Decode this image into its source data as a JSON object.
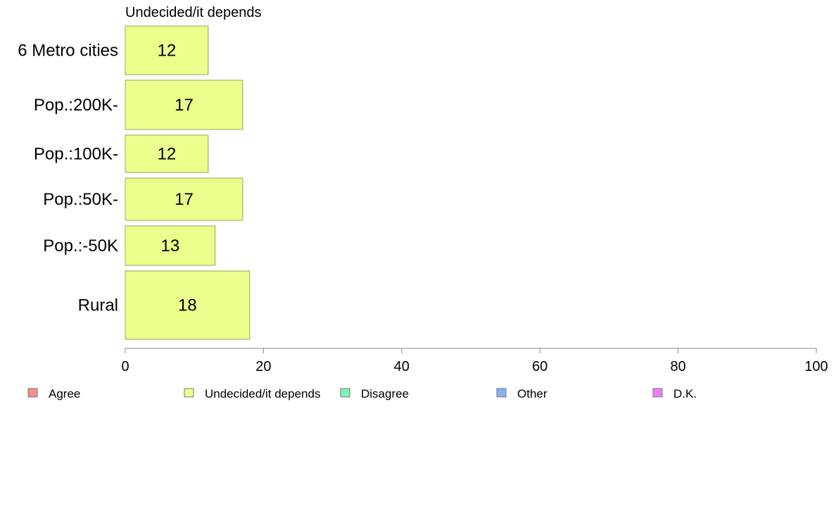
{
  "chart_data": {
    "type": "bar",
    "orientation": "horizontal",
    "title": "Undecided/it depends",
    "categories": [
      "6 Metro cities",
      "Pop.:200K-",
      "Pop.:100K-",
      "Pop.:50K-",
      "Pop.:-50K",
      "Rural"
    ],
    "series": [
      {
        "name": "Undecided/it depends",
        "values": [
          12,
          17,
          12,
          17,
          13,
          18
        ],
        "color": "#ecff8c"
      }
    ],
    "xlim": [
      0,
      100
    ],
    "xticks": [
      0,
      20,
      40,
      60,
      80,
      100
    ],
    "grid": false,
    "legend": {
      "position": "bottom",
      "entries": [
        {
          "label": "Agree",
          "color": "#f28e8a"
        },
        {
          "label": "Undecided/it depends",
          "color": "#ecff8c"
        },
        {
          "label": "Disagree",
          "color": "#80f2b4"
        },
        {
          "label": "Other",
          "color": "#86b2f2"
        },
        {
          "label": "D.K.",
          "color": "#ec82f2"
        }
      ]
    }
  }
}
